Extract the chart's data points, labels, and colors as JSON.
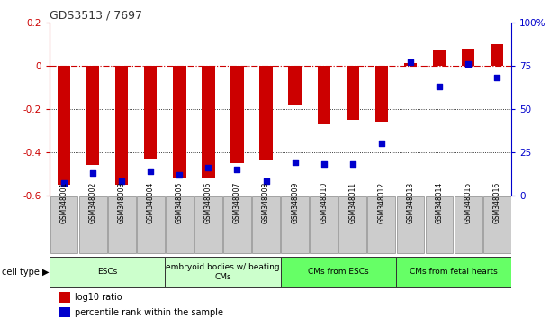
{
  "title": "GDS3513 / 7697",
  "samples": [
    "GSM348001",
    "GSM348002",
    "GSM348003",
    "GSM348004",
    "GSM348005",
    "GSM348006",
    "GSM348007",
    "GSM348008",
    "GSM348009",
    "GSM348010",
    "GSM348011",
    "GSM348012",
    "GSM348013",
    "GSM348014",
    "GSM348015",
    "GSM348016"
  ],
  "log10_ratio": [
    -0.55,
    -0.46,
    -0.55,
    -0.43,
    -0.52,
    -0.52,
    -0.45,
    -0.44,
    -0.18,
    -0.27,
    -0.25,
    -0.26,
    0.01,
    0.07,
    0.08,
    0.1
  ],
  "percentile": [
    7,
    13,
    8,
    14,
    12,
    16,
    15,
    8,
    19,
    18,
    18,
    30,
    77,
    63,
    76,
    68
  ],
  "cell_types": [
    {
      "label": "ESCs",
      "start": 0,
      "end": 3,
      "color": "#ccffcc"
    },
    {
      "label": "embryoid bodies w/ beating\nCMs",
      "start": 4,
      "end": 7,
      "color": "#ccffcc"
    },
    {
      "label": "CMs from ESCs",
      "start": 8,
      "end": 11,
      "color": "#66ff66"
    },
    {
      "label": "CMs from fetal hearts",
      "start": 12,
      "end": 15,
      "color": "#66ff66"
    }
  ],
  "ylim_left": [
    -0.6,
    0.2
  ],
  "ylim_right": [
    0,
    100
  ],
  "bar_color": "#cc0000",
  "scatter_color": "#0000cc",
  "zero_line_color": "#cc0000",
  "grid_color": "#000000",
  "sample_box_color": "#cccccc",
  "background_color": "#ffffff"
}
